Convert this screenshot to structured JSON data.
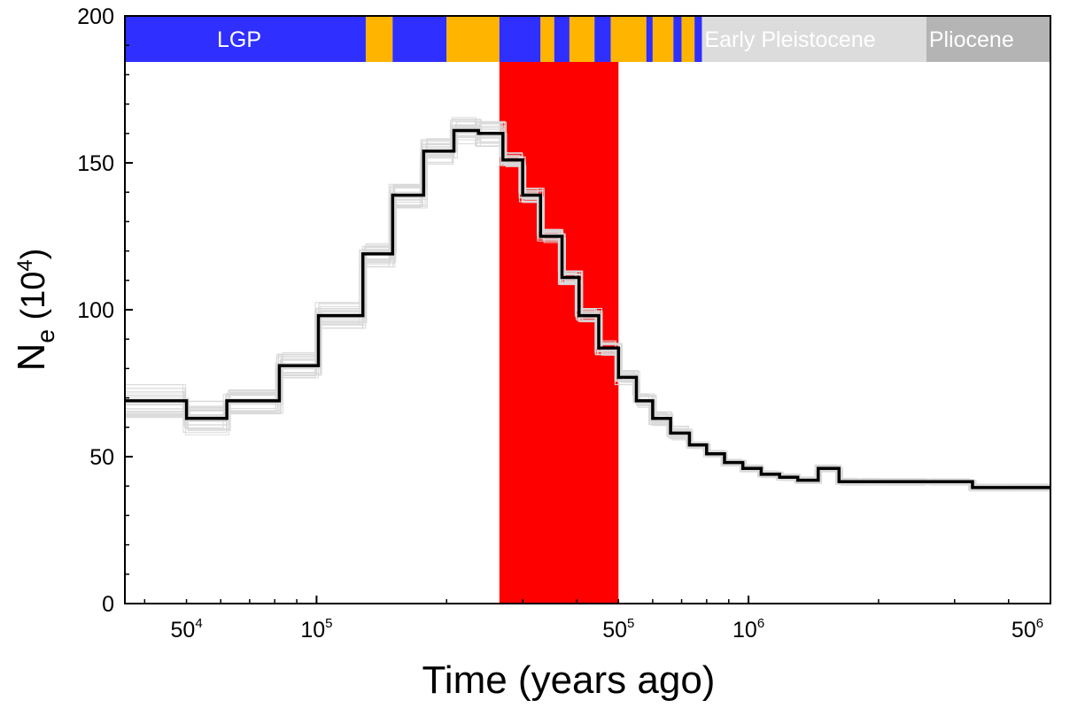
{
  "chart_data": {
    "type": "line",
    "xlabel": "Time (years ago)",
    "ylabel_main": "N",
    "ylabel_sub": "e",
    "ylabel_unit_open": " (10",
    "ylabel_unit_sup": "4",
    "ylabel_unit_close": ")",
    "x_scale": "log",
    "xlim": [
      36000,
      5000000
    ],
    "ylim": [
      0,
      200
    ],
    "y_ticks": [
      0,
      50,
      100,
      150,
      200
    ],
    "x_tick_labels": [
      {
        "value": 50000,
        "base": "50",
        "sup": "4"
      },
      {
        "value": 100000,
        "base": "10",
        "sup": "5"
      },
      {
        "value": 500000,
        "base": "50",
        "sup": "5"
      },
      {
        "value": 1000000,
        "base": "10",
        "sup": "6"
      },
      {
        "value": 5000000,
        "base": "50",
        "sup": "6"
      }
    ],
    "grid": false,
    "colors": {
      "glacial": "#2f2fff",
      "interglacial": "#ffb400",
      "early_pleistocene": "#dcdcdc",
      "pliocene": "#b4b4b4",
      "highlight": "#ff0000",
      "main_line": "#000000",
      "bootstrap": "#d9d9d9"
    },
    "highlight_region": [
      265000,
      500000
    ],
    "bands": [
      {
        "start": 36000,
        "end": 130000,
        "kind": "glacial",
        "label": "LGP"
      },
      {
        "start": 130000,
        "end": 150000,
        "kind": "interglacial"
      },
      {
        "start": 150000,
        "end": 200000,
        "kind": "glacial"
      },
      {
        "start": 200000,
        "end": 265000,
        "kind": "interglacial"
      },
      {
        "start": 265000,
        "end": 330000,
        "kind": "glacial"
      },
      {
        "start": 330000,
        "end": 355000,
        "kind": "interglacial"
      },
      {
        "start": 355000,
        "end": 385000,
        "kind": "glacial"
      },
      {
        "start": 385000,
        "end": 440000,
        "kind": "interglacial"
      },
      {
        "start": 440000,
        "end": 480000,
        "kind": "glacial"
      },
      {
        "start": 480000,
        "end": 580000,
        "kind": "interglacial"
      },
      {
        "start": 580000,
        "end": 600000,
        "kind": "glacial"
      },
      {
        "start": 600000,
        "end": 670000,
        "kind": "interglacial"
      },
      {
        "start": 670000,
        "end": 700000,
        "kind": "glacial"
      },
      {
        "start": 700000,
        "end": 750000,
        "kind": "interglacial"
      },
      {
        "start": 750000,
        "end": 780000,
        "kind": "glacial"
      },
      {
        "start": 780000,
        "end": 2580000,
        "kind": "early_pleistocene",
        "label": "Early Pleistocene"
      },
      {
        "start": 2580000,
        "end": 5000000,
        "kind": "pliocene",
        "label": "Pliocene"
      }
    ],
    "series": [
      {
        "style": "step",
        "x": [
          36000,
          50000,
          62000,
          82000,
          101000,
          128000,
          150000,
          177000,
          208000,
          237000,
          270000,
          300000,
          330000,
          370000,
          405000,
          450000,
          500000,
          550000,
          600000,
          660000,
          730000,
          800000,
          880000,
          970000,
          1070000,
          1180000,
          1300000,
          1450000,
          1620000,
          1800000,
          2000000,
          2600000,
          3300000,
          4100000,
          5000000
        ],
        "y": [
          69,
          63,
          69,
          81,
          98,
          119,
          139,
          154,
          161,
          160,
          151,
          139,
          125,
          111,
          98,
          87,
          77,
          69,
          63,
          58,
          54,
          51,
          48,
          46,
          44,
          43,
          42,
          46,
          41.5,
          41.5,
          41.5,
          41.5,
          39.5,
          39.5,
          39.5
        ]
      }
    ]
  }
}
